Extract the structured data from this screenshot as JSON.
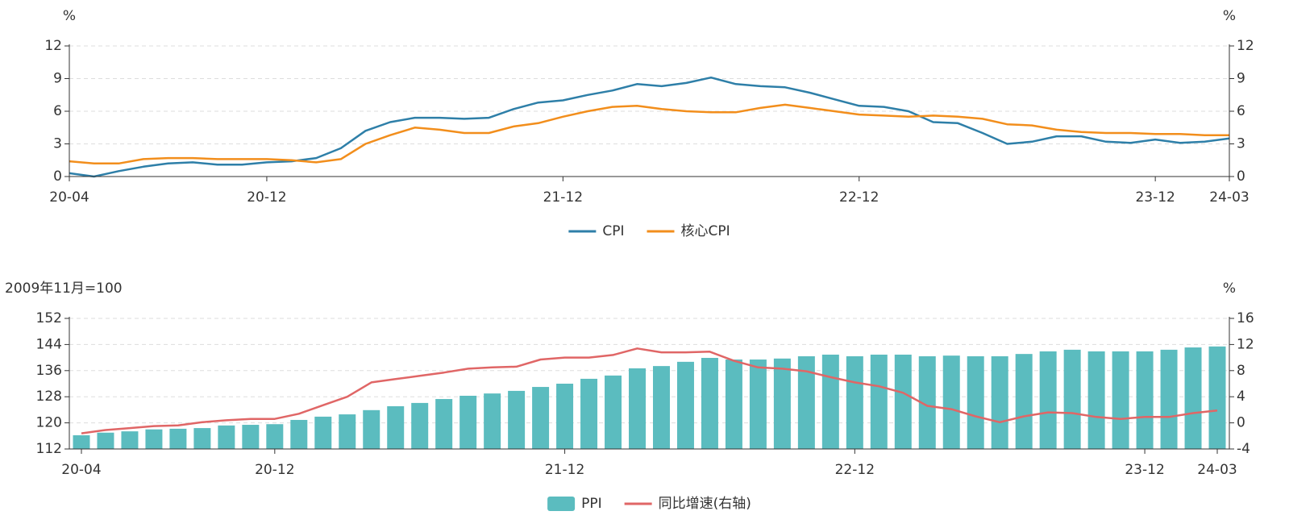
{
  "chart_data": [
    {
      "type": "line",
      "y_unit": "%",
      "y2_unit": "%",
      "categories": [
        "20-04",
        null,
        null,
        null,
        null,
        null,
        null,
        null,
        "20-12",
        null,
        null,
        null,
        null,
        null,
        null,
        null,
        null,
        null,
        null,
        null,
        "21-12",
        null,
        null,
        null,
        null,
        null,
        null,
        null,
        null,
        null,
        null,
        null,
        "22-12",
        null,
        null,
        null,
        null,
        null,
        null,
        null,
        null,
        null,
        null,
        null,
        "23-12",
        null,
        null,
        "24-03"
      ],
      "series": [
        {
          "name": "CPI",
          "color": "#2e7fa8",
          "values": [
            0.3,
            0.0,
            0.5,
            0.9,
            1.2,
            1.3,
            1.1,
            1.1,
            1.3,
            1.4,
            1.7,
            2.6,
            4.2,
            5.0,
            5.4,
            5.4,
            5.3,
            5.4,
            6.2,
            6.8,
            7.0,
            7.5,
            7.9,
            8.5,
            8.3,
            8.6,
            9.1,
            8.5,
            8.3,
            8.2,
            7.7,
            7.1,
            6.5,
            6.4,
            6.0,
            5.0,
            4.9,
            4.0,
            3.0,
            3.2,
            3.7,
            3.7,
            3.2,
            3.1,
            3.4,
            3.1,
            3.2,
            3.5
          ]
        },
        {
          "name": "核心CPI",
          "color": "#f28e1c",
          "values": [
            1.4,
            1.2,
            1.2,
            1.6,
            1.7,
            1.7,
            1.6,
            1.6,
            1.6,
            1.5,
            1.3,
            1.6,
            3.0,
            3.8,
            4.5,
            4.3,
            4.0,
            4.0,
            4.6,
            4.9,
            5.5,
            6.0,
            6.4,
            6.5,
            6.2,
            6.0,
            5.9,
            5.9,
            6.3,
            6.6,
            6.3,
            6.0,
            5.7,
            5.6,
            5.5,
            5.6,
            5.5,
            5.3,
            4.8,
            4.7,
            4.3,
            4.1,
            4.0,
            4.0,
            3.9,
            3.9,
            3.8,
            3.8
          ]
        }
      ],
      "ylim": [
        0,
        12
      ],
      "yticks": [
        0,
        3,
        6,
        9,
        12
      ],
      "y2lim": [
        0,
        12
      ],
      "y2ticks": [
        0,
        3,
        6,
        9,
        12
      ],
      "grid": true,
      "legend": "bottom"
    },
    {
      "type": "combo",
      "y_unit": "2009年11月=100",
      "y2_unit": "%",
      "categories": [
        "20-04",
        null,
        null,
        null,
        null,
        null,
        null,
        null,
        "20-12",
        null,
        null,
        null,
        null,
        null,
        null,
        null,
        null,
        null,
        null,
        null,
        "21-12",
        null,
        null,
        null,
        null,
        null,
        null,
        null,
        null,
        null,
        null,
        null,
        "22-12",
        null,
        null,
        null,
        null,
        null,
        null,
        null,
        null,
        null,
        null,
        null,
        "23-12",
        null,
        null,
        "24-03"
      ],
      "series": [
        {
          "name": "PPI",
          "color": "#5bbcbf",
          "kind": "bar",
          "values": [
            116.2,
            117.0,
            117.4,
            118.0,
            118.2,
            118.4,
            119.2,
            119.4,
            119.6,
            120.9,
            121.9,
            122.6,
            123.9,
            125.1,
            126.1,
            127.3,
            128.3,
            129.0,
            129.8,
            131.0,
            132.0,
            133.5,
            134.5,
            136.7,
            137.4,
            138.7,
            139.9,
            139.4,
            139.4,
            139.7,
            140.4,
            140.9,
            140.4,
            140.9,
            140.9,
            140.4,
            140.6,
            140.4,
            140.4,
            141.1,
            141.9,
            142.4,
            141.9,
            141.9,
            141.9,
            142.4,
            143.1,
            143.4
          ]
        },
        {
          "name": "同比增速(右轴)",
          "color": "#e06666",
          "kind": "line",
          "axis": "y2",
          "values": [
            -1.6,
            -1.1,
            -0.8,
            -0.5,
            -0.4,
            0.1,
            0.4,
            0.6,
            0.6,
            1.4,
            2.7,
            4.0,
            6.2,
            6.7,
            7.2,
            7.7,
            8.3,
            8.5,
            8.6,
            9.7,
            10.0,
            10.0,
            10.4,
            11.4,
            10.8,
            10.8,
            10.9,
            9.5,
            8.5,
            8.3,
            7.9,
            7.0,
            6.2,
            5.6,
            4.6,
            2.6,
            2.1,
            1.0,
            0.1,
            1.0,
            1.6,
            1.5,
            0.9,
            0.6,
            0.9,
            0.9,
            1.5,
            1.9
          ]
        }
      ],
      "ylim": [
        112,
        152
      ],
      "yticks": [
        112,
        120,
        128,
        136,
        144,
        152
      ],
      "y2lim": [
        -4,
        16
      ],
      "y2ticks": [
        -4,
        0,
        4,
        8,
        12,
        16
      ],
      "grid": true,
      "legend": "bottom"
    }
  ]
}
